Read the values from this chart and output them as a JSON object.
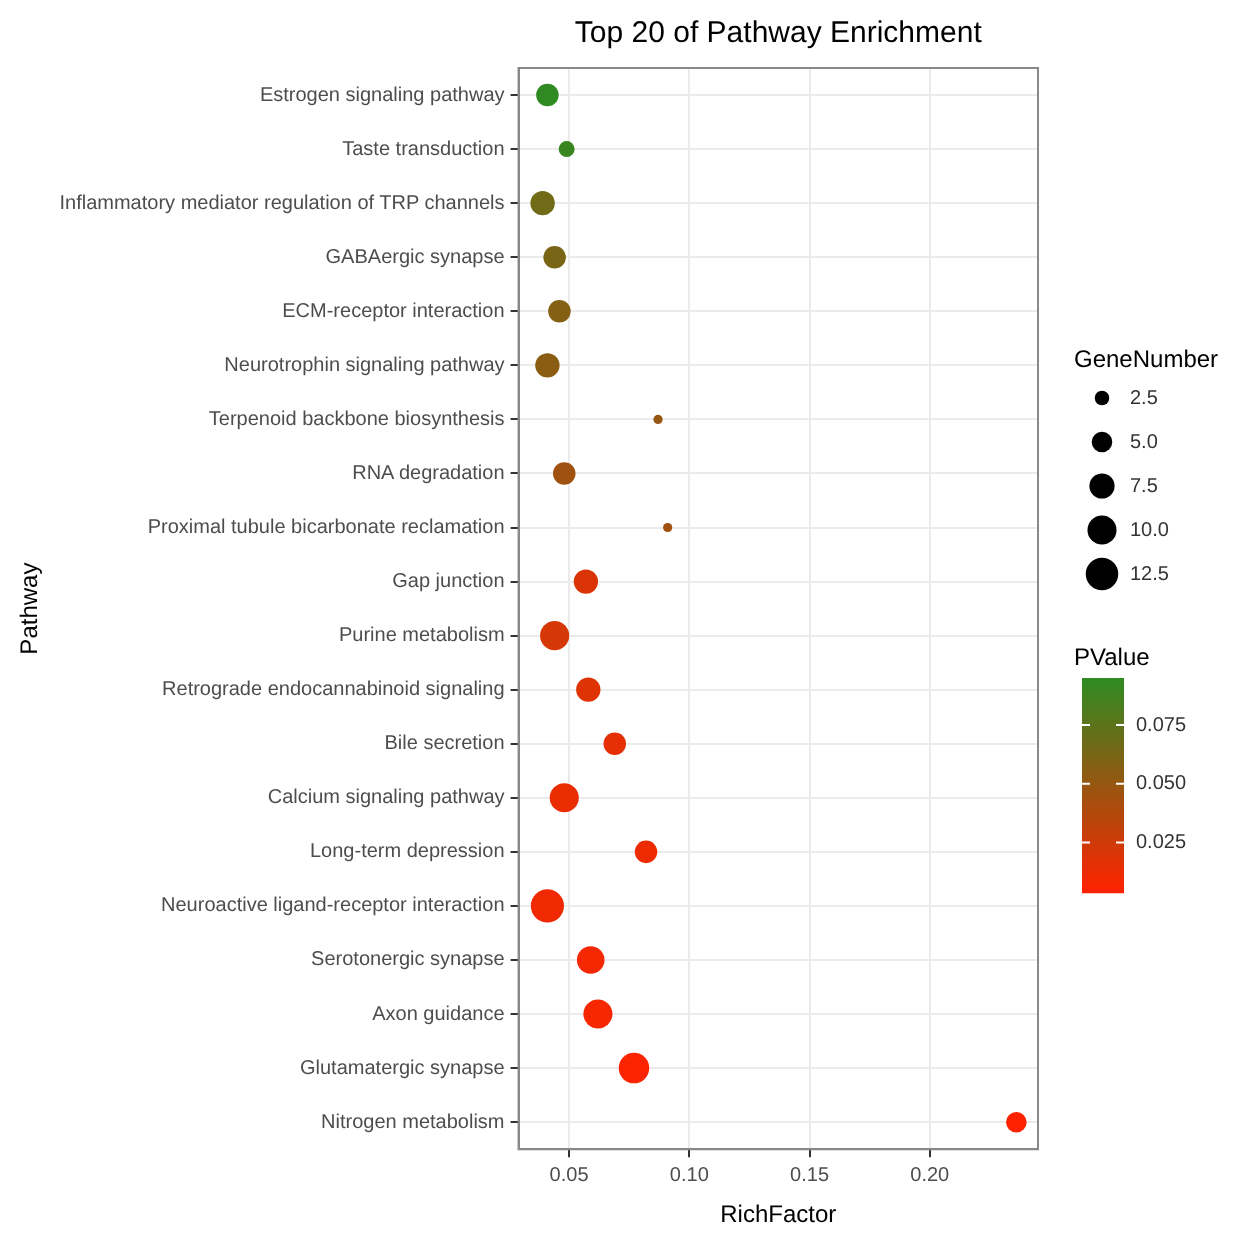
{
  "chart_data": {
    "type": "bubble",
    "title": "Top 20 of Pathway Enrichment",
    "xlabel": "RichFactor",
    "ylabel": "Pathway",
    "legend_title": "GeneNumber",
    "clabel": "PValue",
    "categories": [
      "Estrogen signaling pathway",
      "Taste transduction",
      "Inflammatory mediator regulation of TRP channels",
      "GABAergic synapse",
      "ECM-receptor interaction",
      "Neurotrophin signaling pathway",
      "Terpenoid backbone biosynthesis",
      "RNA degradation",
      "Proximal tubule bicarbonate reclamation",
      "Gap junction",
      "Purine metabolism",
      "Retrograde endocannabinoid signaling",
      "Bile secretion",
      "Calcium signaling pathway",
      "Long-term depression",
      "Neuroactive ligand-receptor interaction",
      "Serotonergic synapse",
      "Axon guidance",
      "Glutamatergic synapse",
      "Nitrogen metabolism"
    ],
    "orientation": "horizontal",
    "values": [
      0.041,
      0.049,
      0.039,
      0.044,
      0.046,
      0.041,
      0.087,
      0.048,
      0.091,
      0.057,
      0.044,
      0.058,
      0.069,
      0.048,
      0.082,
      0.041,
      0.059,
      0.062,
      0.077,
      0.236
    ],
    "sizes": [
      6,
      3,
      7,
      6,
      6,
      7,
      1,
      6,
      1,
      7,
      10,
      7,
      6,
      10,
      6,
      13,
      9,
      10,
      11,
      5
    ],
    "size_legend": [
      2.5,
      {
        "value": 5,
        "label": "5.0"
      },
      7.5,
      {
        "value": 10,
        "label": "10.0"
      },
      12.5
    ],
    "cvalues": [
      0.094,
      0.09,
      0.066,
      0.062,
      0.058,
      0.055,
      0.05,
      0.046,
      0.045,
      0.02,
      0.022,
      0.018,
      0.015,
      0.013,
      0.012,
      0.01,
      0.009,
      0.008,
      0.006,
      0.004
    ],
    "clim": [
      0.004,
      0.095
    ],
    "cticks": [
      0.025,
      {
        "value": 0.05,
        "label": "0.050"
      },
      0.075
    ],
    "xlim": [
      0.029,
      0.245
    ],
    "xticks": [
      0.05,
      {
        "value": 0.1,
        "label": "0.10"
      },
      0.15,
      {
        "value": 0.2,
        "label": "0.20"
      }
    ],
    "grid": true
  }
}
